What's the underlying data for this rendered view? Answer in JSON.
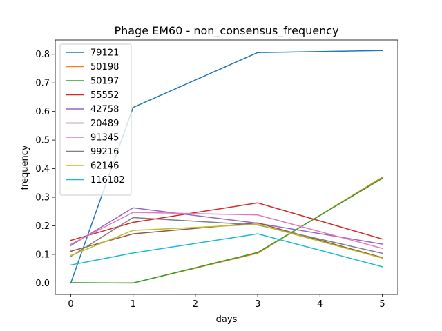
{
  "chart_data": {
    "type": "line",
    "title": "Phage EM60 - non_consensus_frequency",
    "xlabel": "days",
    "ylabel": "frequency",
    "x": [
      0,
      1,
      3,
      5
    ],
    "xlim": [
      -0.25,
      5.25
    ],
    "ylim": [
      -0.04,
      0.85
    ],
    "xticks": [
      "0",
      "1",
      "2",
      "3",
      "4",
      "5"
    ],
    "yticks": [
      "0.0",
      "0.1",
      "0.2",
      "0.3",
      "0.4",
      "0.5",
      "0.6",
      "0.7",
      "0.8"
    ],
    "grid": false,
    "legend_position": "upper-left",
    "series": [
      {
        "name": "79121",
        "color": "#1f77b4",
        "values": [
          0.0,
          0.614,
          0.806,
          0.813
        ]
      },
      {
        "name": "50198",
        "color": "#ff7f0e",
        "values": [
          0.001,
          0.0,
          0.104,
          0.37
        ]
      },
      {
        "name": "50197",
        "color": "#2ca02c",
        "values": [
          0.001,
          0.0,
          0.107,
          0.366
        ]
      },
      {
        "name": "55552",
        "color": "#d62728",
        "values": [
          0.149,
          0.212,
          0.28,
          0.154
        ]
      },
      {
        "name": "42758",
        "color": "#9467bd",
        "values": [
          0.131,
          0.263,
          0.209,
          0.136
        ]
      },
      {
        "name": "20489",
        "color": "#8c564b",
        "values": [
          0.111,
          0.172,
          0.21,
          0.089
        ]
      },
      {
        "name": "91345",
        "color": "#e377c2",
        "values": [
          0.135,
          0.247,
          0.238,
          0.121
        ]
      },
      {
        "name": "99216",
        "color": "#7f7f7f",
        "values": [
          0.093,
          0.229,
          0.203,
          0.104
        ]
      },
      {
        "name": "62146",
        "color": "#bcbd22",
        "values": [
          0.096,
          0.184,
          0.205,
          0.087
        ]
      },
      {
        "name": "116182",
        "color": "#17becf",
        "values": [
          0.063,
          0.105,
          0.172,
          0.057
        ]
      }
    ]
  }
}
